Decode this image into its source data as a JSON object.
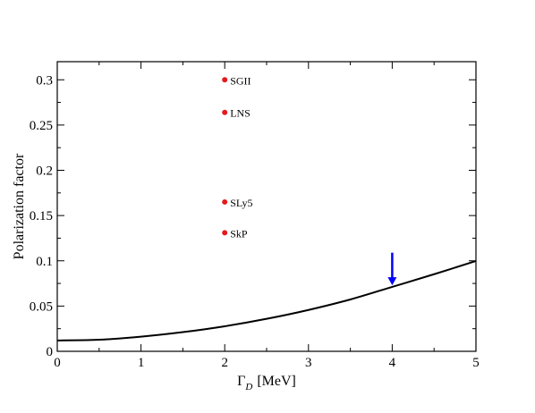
{
  "chart_data": {
    "type": "scatter",
    "xlabel_main": "Γ",
    "xlabel_sub": "D",
    "xlabel_unit": "[MeV]",
    "ylabel": "Polarization factor",
    "xlim": [
      0,
      5
    ],
    "ylim": [
      0,
      0.32
    ],
    "xticks": [
      0,
      1,
      2,
      3,
      4,
      5
    ],
    "xtick_labels": [
      "0",
      "1",
      "2",
      "3",
      "4",
      "5"
    ],
    "yticks": [
      0,
      0.05,
      0.1,
      0.15,
      0.2,
      0.25,
      0.3
    ],
    "ytick_labels": [
      "0",
      "0.05",
      "0.1",
      "0.15",
      "0.2",
      "0.25",
      "0.3"
    ],
    "grid": false,
    "points": [
      {
        "label": "SGII",
        "x": 2,
        "y": 0.3,
        "color": "#e41a1c"
      },
      {
        "label": "LNS",
        "x": 2,
        "y": 0.264,
        "color": "#e41a1c"
      },
      {
        "label": "SLy5",
        "x": 2,
        "y": 0.165,
        "color": "#e41a1c"
      },
      {
        "label": "SkP",
        "x": 2,
        "y": 0.131,
        "color": "#e41a1c"
      }
    ],
    "curve": {
      "color": "#000000",
      "x": [
        0,
        0.5,
        1,
        1.5,
        2,
        2.5,
        3,
        3.5,
        4,
        4.5,
        5
      ],
      "y": [
        0.012,
        0.0128,
        0.0162,
        0.0212,
        0.0277,
        0.0359,
        0.0457,
        0.0573,
        0.0712,
        0.0852,
        0.0998
      ]
    },
    "arrow": {
      "x": 4,
      "y_top": 0.109,
      "y_tip": 0.073,
      "color": "#0000ff"
    }
  }
}
